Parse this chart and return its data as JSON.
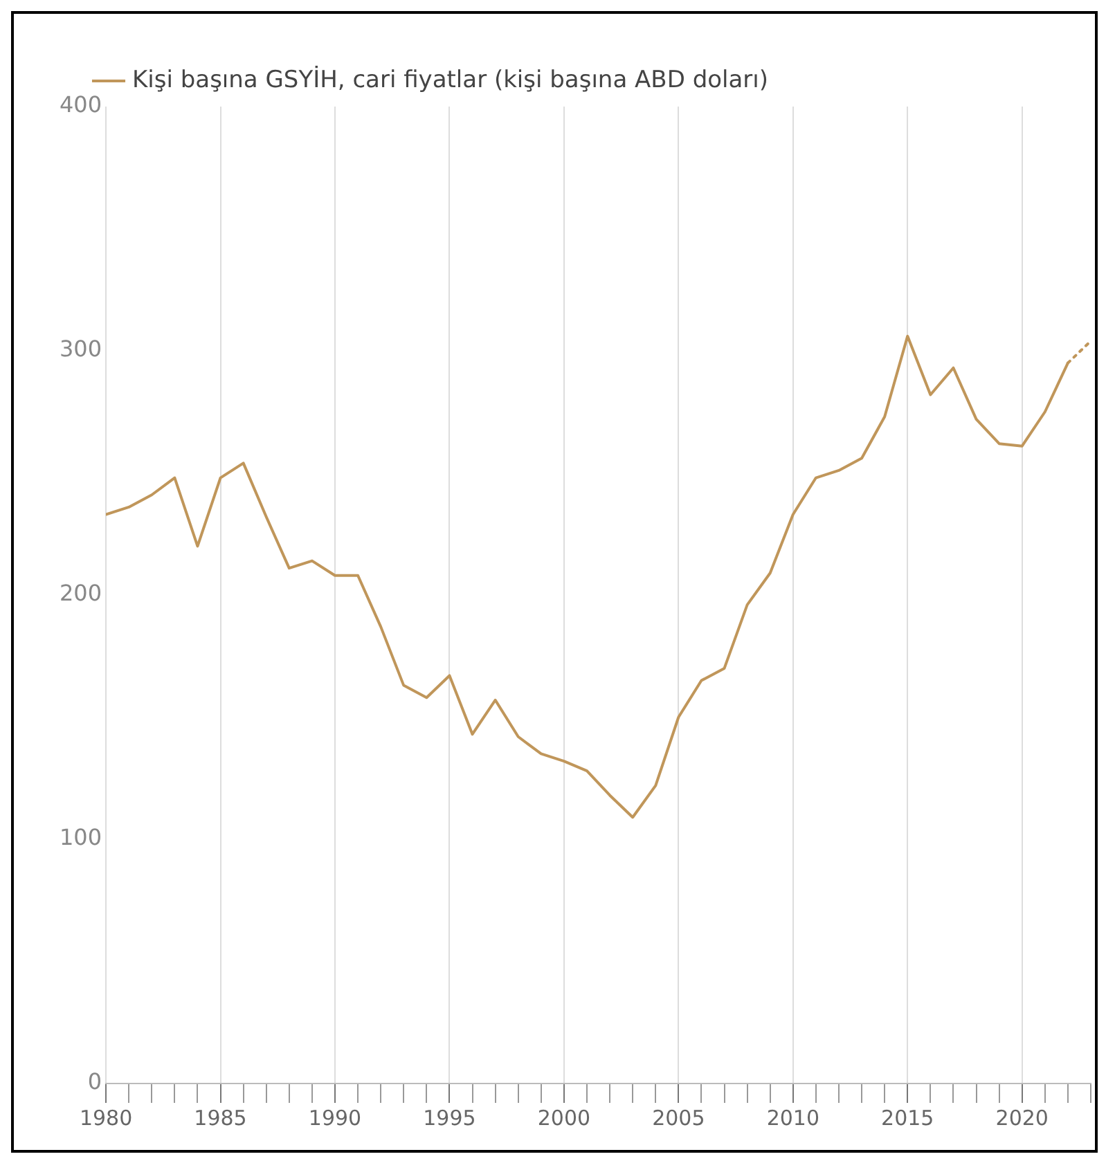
{
  "chart_data": {
    "type": "line",
    "legend": "top left",
    "grid": "x",
    "xlim": [
      1980,
      2023
    ],
    "ylim": [
      0,
      400
    ],
    "yticks": [
      0,
      100,
      200,
      300,
      400
    ],
    "xticks": [
      1980,
      {
        "value": 1981,
        "label": null
      },
      {
        "value": 1982,
        "label": null
      },
      {
        "value": 1983,
        "label": null
      },
      {
        "value": 1984,
        "label": null
      },
      1985,
      {
        "value": 1986,
        "label": null
      },
      {
        "value": 1987,
        "label": null
      },
      {
        "value": 1988,
        "label": null
      },
      {
        "value": 1989,
        "label": null
      },
      1990,
      {
        "value": 1991,
        "label": null
      },
      {
        "value": 1992,
        "label": null
      },
      {
        "value": 1993,
        "label": null
      },
      {
        "value": 1994,
        "label": null
      },
      1995,
      {
        "value": 1996,
        "label": null
      },
      {
        "value": 1997,
        "label": null
      },
      {
        "value": 1998,
        "label": null
      },
      {
        "value": 1999,
        "label": null
      },
      2000,
      {
        "value": 2001,
        "label": null
      },
      {
        "value": 2002,
        "label": null
      },
      {
        "value": 2003,
        "label": null
      },
      {
        "value": 2004,
        "label": null
      },
      2005,
      {
        "value": 2006,
        "label": null
      },
      {
        "value": 2007,
        "label": null
      },
      {
        "value": 2008,
        "label": null
      },
      {
        "value": 2009,
        "label": null
      },
      2010,
      {
        "value": 2011,
        "label": null
      },
      {
        "value": 2012,
        "label": null
      },
      {
        "value": 2013,
        "label": null
      },
      {
        "value": 2014,
        "label": null
      },
      2015,
      {
        "value": 2016,
        "label": null
      },
      {
        "value": 2017,
        "label": null
      },
      {
        "value": 2018,
        "label": null
      },
      {
        "value": 2019,
        "label": null
      },
      2020,
      {
        "value": 2021,
        "label": null
      },
      {
        "value": 2022,
        "label": null
      },
      {
        "value": 2023,
        "label": null
      }
    ],
    "series": [
      {
        "name": "Kişi başına GSYİH, cari fiyatlar (kişi başına ABD doları)",
        "color": "#c0965a",
        "line_style": "solid",
        "x": [
          1980,
          1981,
          1982,
          1983,
          1984,
          1985,
          1986,
          1987,
          1988,
          1989,
          1990,
          1991,
          1992,
          1993,
          1994,
          1995,
          1996,
          1997,
          1998,
          1999,
          2000,
          2001,
          2002,
          2003,
          2004,
          2005,
          2006,
          2007,
          2008,
          2009,
          2010,
          2011,
          2012,
          2013,
          2014,
          2015,
          2016,
          2017,
          2018,
          2019,
          2020,
          2021,
          2022
        ],
        "values": [
          233,
          236,
          241,
          248,
          220,
          248,
          254,
          232,
          211,
          214,
          208,
          208,
          187,
          163,
          158,
          167,
          143,
          157,
          142,
          135,
          132,
          128,
          118,
          109,
          122,
          150,
          165,
          170,
          196,
          209,
          233,
          248,
          251,
          256,
          273,
          306,
          282,
          293,
          272,
          262,
          261,
          275,
          295
        ]
      },
      {
        "color": "#c0965a",
        "line_style": "dotted",
        "x": [
          2022,
          2023
        ],
        "values": [
          295,
          304
        ]
      }
    ]
  }
}
